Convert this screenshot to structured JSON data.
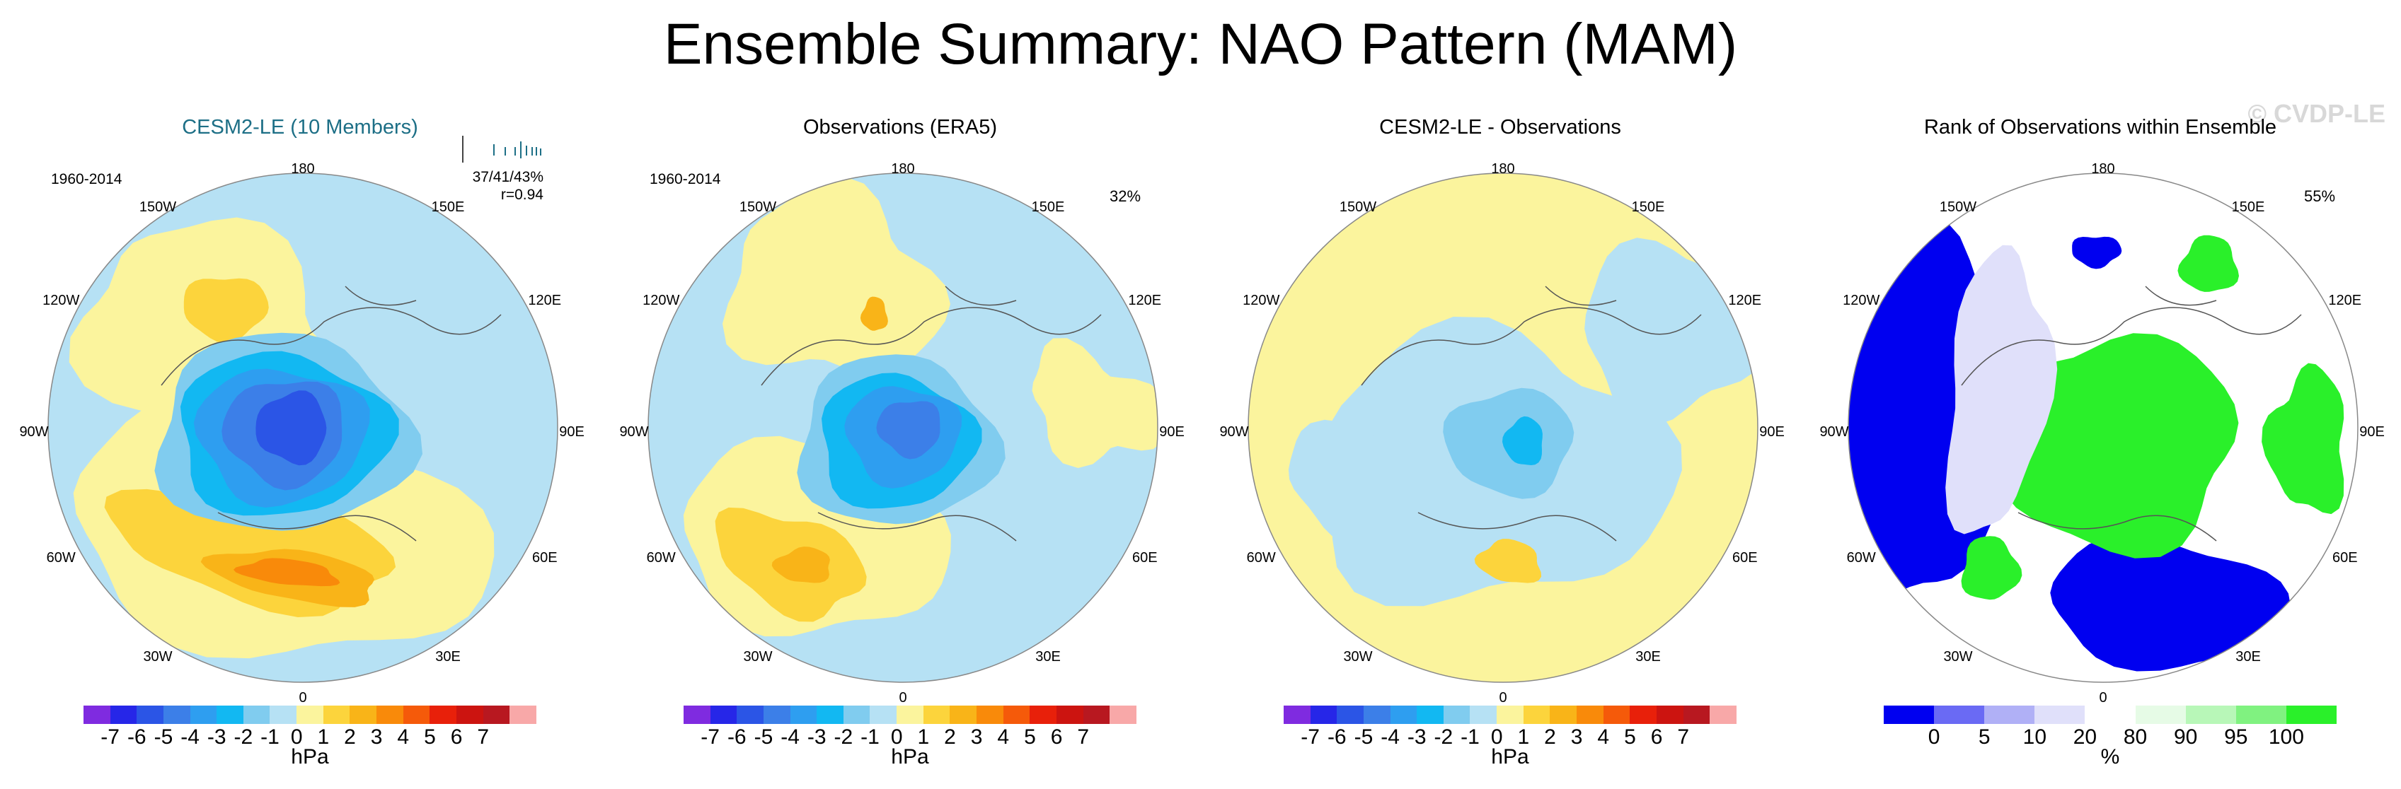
{
  "main_title": "Ensemble Summary: NAO Pattern (MAM)",
  "watermark": "© CVDP-LE",
  "lon_labels": {
    "top": "180",
    "bottom": "0",
    "left": "90W",
    "right": "90E",
    "ul": "150W",
    "ur": "150E",
    "ul2": "120W",
    "ur2": "120E",
    "ll": "60W",
    "lr": "60E",
    "ll2": "30W",
    "lr2": "30E"
  },
  "panels": [
    {
      "title": "CESM2-LE (10 Members)",
      "period": "1960-2014",
      "pct": "",
      "stat1": "37/41/43%",
      "stat2": "r=0.94",
      "colorbar": "hpa"
    },
    {
      "title": "Observations (ERA5)",
      "period": "1960-2014",
      "pct": "32%",
      "stat1": "",
      "stat2": "",
      "colorbar": "hpa"
    },
    {
      "title": "CESM2-LE - Observations",
      "period": "",
      "pct": "",
      "stat1": "",
      "stat2": "",
      "colorbar": "hpa"
    },
    {
      "title": "Rank of Observations within Ensemble",
      "period": "",
      "pct": "55%",
      "stat1": "",
      "stat2": "",
      "colorbar": "rank"
    }
  ],
  "colorbar_hpa": {
    "colors": [
      "#7f2be0",
      "#2626e8",
      "#2b55e6",
      "#3c7fe8",
      "#2e9ef0",
      "#12b8f2",
      "#80ccef",
      "#b6e1f4",
      "#fbf49d",
      "#fcd43c",
      "#f9b418",
      "#f98a0a",
      "#f55a0a",
      "#e8200a",
      "#cc1410",
      "#b81820",
      "#f8a8a8"
    ],
    "labels": [
      "-7",
      "-6",
      "-5",
      "-4",
      "-3",
      "-2",
      "-1",
      "0",
      "1",
      "2",
      "3",
      "4",
      "5",
      "6",
      "7"
    ],
    "unit": "hPa"
  },
  "colorbar_rank": {
    "colors": [
      "#0000f0",
      "#6a6af4",
      "#b0b0f6",
      "#e0e0fa",
      "#ffffff",
      "#e6fbe6",
      "#b8f7b8",
      "#80f280",
      "#2af02a"
    ],
    "labels": [
      "0",
      "5",
      "10",
      "20",
      "80",
      "90",
      "95",
      "100"
    ],
    "unit": "%"
  }
}
